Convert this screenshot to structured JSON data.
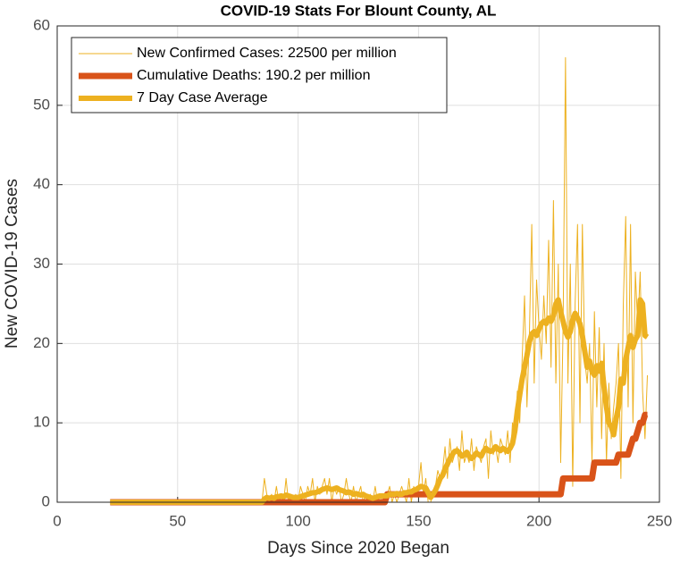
{
  "chart_data": {
    "type": "line",
    "title": "COVID-19 Stats For Blount County, AL",
    "xlabel": "Days Since 2020 Began",
    "ylabel": "New COVID-19 Cases",
    "xlim": [
      0,
      250
    ],
    "xticks": [
      0,
      50,
      100,
      150,
      200,
      250
    ],
    "ylim": [
      0,
      60
    ],
    "yticks": [
      0,
      10,
      20,
      30,
      40,
      50,
      60
    ],
    "grid": true,
    "legend": "northwest",
    "x": [
      22,
      23,
      24,
      25,
      26,
      27,
      28,
      29,
      30,
      31,
      32,
      33,
      34,
      35,
      36,
      37,
      38,
      39,
      40,
      41,
      42,
      43,
      44,
      45,
      46,
      47,
      48,
      49,
      50,
      51,
      52,
      53,
      54,
      55,
      56,
      57,
      58,
      59,
      60,
      61,
      62,
      63,
      64,
      65,
      66,
      67,
      68,
      69,
      70,
      71,
      72,
      73,
      74,
      75,
      76,
      77,
      78,
      79,
      80,
      81,
      82,
      83,
      84,
      85,
      86,
      87,
      88,
      89,
      90,
      91,
      92,
      93,
      94,
      95,
      96,
      97,
      98,
      99,
      100,
      101,
      102,
      103,
      104,
      105,
      106,
      107,
      108,
      109,
      110,
      111,
      112,
      113,
      114,
      115,
      116,
      117,
      118,
      119,
      120,
      121,
      122,
      123,
      124,
      125,
      126,
      127,
      128,
      129,
      130,
      131,
      132,
      133,
      134,
      135,
      136,
      137,
      138,
      139,
      140,
      141,
      142,
      143,
      144,
      145,
      146,
      147,
      148,
      149,
      150,
      151,
      152,
      153,
      154,
      155,
      156,
      157,
      158,
      159,
      160,
      161,
      162,
      163,
      164,
      165,
      166,
      167,
      168,
      169,
      170,
      171,
      172,
      173,
      174,
      175,
      176,
      177,
      178,
      179,
      180,
      181,
      182,
      183,
      184,
      185,
      186,
      187,
      188,
      189,
      190,
      191,
      192,
      193,
      194,
      195,
      196,
      197,
      198,
      199,
      200,
      201,
      202,
      203,
      204,
      205,
      206,
      207,
      208,
      209,
      210,
      211,
      212,
      213,
      214,
      215,
      216,
      217,
      218,
      219,
      220,
      221,
      222,
      223,
      224,
      225,
      226,
      227,
      228,
      229,
      230,
      231,
      232,
      233,
      234,
      235,
      236,
      237,
      238,
      239,
      240,
      241,
      242,
      243,
      244,
      245
    ],
    "series": [
      {
        "name": "New Confirmed Cases: 22500 per million",
        "color": "#EDB120",
        "values": [
          0,
          0,
          0,
          0,
          0,
          0,
          0,
          0,
          0,
          0,
          0,
          0,
          0,
          0,
          0,
          0,
          0,
          0,
          0,
          0,
          0,
          0,
          0,
          0,
          0,
          0,
          0,
          0,
          0,
          0,
          0,
          0,
          0,
          0,
          0,
          0,
          0,
          0,
          0,
          0,
          0,
          0,
          0,
          0,
          0,
          0,
          0,
          0,
          0,
          0,
          0,
          0,
          0,
          0,
          0,
          0,
          0,
          0,
          0,
          0,
          0,
          0,
          0,
          0,
          3,
          1,
          0,
          1,
          0,
          2,
          0,
          1,
          0,
          3,
          0,
          1,
          0,
          1,
          0,
          2,
          1,
          0,
          2,
          1,
          3,
          0,
          2,
          1,
          2,
          3,
          1,
          3,
          0,
          2,
          1,
          2,
          0,
          1,
          3,
          1,
          0,
          2,
          0,
          1,
          2,
          0,
          1,
          0,
          1,
          0,
          2,
          0,
          1,
          0,
          0,
          1,
          2,
          0,
          1,
          0,
          1,
          2,
          1,
          0,
          3,
          0,
          2,
          1,
          2,
          5,
          1,
          3,
          0,
          0,
          1,
          2,
          4,
          3,
          4,
          7,
          3,
          8,
          5,
          6,
          7,
          4,
          9,
          5,
          6,
          5,
          8,
          4,
          7,
          6,
          5,
          7,
          8,
          3,
          9,
          6,
          7,
          5,
          8,
          7,
          6,
          9,
          5,
          10,
          8,
          14,
          10,
          18,
          26,
          12,
          21,
          35,
          15,
          28,
          22,
          18,
          26,
          20,
          33,
          17,
          38,
          15,
          30,
          5,
          22,
          56,
          15,
          30,
          2,
          25,
          35,
          10,
          35,
          18,
          15,
          20,
          5,
          24,
          12,
          22,
          8,
          20,
          5,
          15,
          8,
          12,
          15,
          20,
          3,
          25,
          36,
          12,
          35,
          10,
          29,
          22,
          29,
          14,
          8,
          16
        ]
      },
      {
        "name": "Cumulative Deaths: 190.2 per million",
        "color": "#D95319",
        "values": [
          0,
          0,
          0,
          0,
          0,
          0,
          0,
          0,
          0,
          0,
          0,
          0,
          0,
          0,
          0,
          0,
          0,
          0,
          0,
          0,
          0,
          0,
          0,
          0,
          0,
          0,
          0,
          0,
          0,
          0,
          0,
          0,
          0,
          0,
          0,
          0,
          0,
          0,
          0,
          0,
          0,
          0,
          0,
          0,
          0,
          0,
          0,
          0,
          0,
          0,
          0,
          0,
          0,
          0,
          0,
          0,
          0,
          0,
          0,
          0,
          0,
          0,
          0,
          0,
          0,
          0,
          0,
          0,
          0,
          0,
          0,
          0,
          0,
          0,
          0,
          0,
          0,
          0,
          0,
          0,
          0,
          0,
          0,
          0,
          0,
          0,
          0,
          0,
          0,
          0,
          0,
          0,
          0,
          0,
          0,
          0,
          0,
          0,
          0,
          0,
          0,
          0,
          0,
          0,
          0,
          0,
          0,
          0,
          0,
          0,
          0,
          0,
          0,
          0,
          0,
          1,
          1,
          1,
          1,
          1,
          1,
          1,
          1,
          1,
          1,
          1,
          1,
          1,
          1,
          1,
          1,
          1,
          1,
          1,
          1,
          1,
          1,
          1,
          1,
          1,
          1,
          1,
          1,
          1,
          1,
          1,
          1,
          1,
          1,
          1,
          1,
          1,
          1,
          1,
          1,
          1,
          1,
          1,
          1,
          1,
          1,
          1,
          1,
          1,
          1,
          1,
          1,
          1,
          1,
          1,
          1,
          1,
          1,
          1,
          1,
          1,
          1,
          1,
          1,
          1,
          1,
          1,
          1,
          1,
          1,
          1,
          1,
          1,
          3,
          3,
          3,
          3,
          3,
          3,
          3,
          3,
          3,
          3,
          3,
          3,
          3,
          5,
          5,
          5,
          5,
          5,
          5,
          5,
          5,
          5,
          5,
          6,
          6,
          6,
          6,
          6,
          7,
          8,
          8,
          9,
          10,
          10,
          11,
          11
        ]
      },
      {
        "name": "7 Day Case Average",
        "color": "#EDB120",
        "values": [
          0,
          0,
          0,
          0,
          0,
          0,
          0,
          0,
          0,
          0,
          0,
          0,
          0,
          0,
          0,
          0,
          0,
          0,
          0,
          0,
          0,
          0,
          0,
          0,
          0,
          0,
          0,
          0,
          0,
          0,
          0,
          0,
          0,
          0,
          0,
          0,
          0,
          0,
          0,
          0,
          0,
          0,
          0,
          0,
          0,
          0,
          0,
          0,
          0,
          0,
          0,
          0,
          0,
          0,
          0,
          0,
          0,
          0,
          0,
          0,
          0,
          0,
          0,
          0,
          0.4,
          0.6,
          0.5,
          0.6,
          0.5,
          0.7,
          0.7,
          0.8,
          0.7,
          0.9,
          0.8,
          0.7,
          0.6,
          0.6,
          0.6,
          0.7,
          0.8,
          0.9,
          1.0,
          1.1,
          1.2,
          1.2,
          1.3,
          1.4,
          1.6,
          1.7,
          1.8,
          1.7,
          1.6,
          1.7,
          1.8,
          1.6,
          1.5,
          1.4,
          1.2,
          1.3,
          1.2,
          1.0,
          1.1,
          1.0,
          0.9,
          1.0,
          0.8,
          0.7,
          0.6,
          0.5,
          0.6,
          0.7,
          0.8,
          0.8,
          0.8,
          0.8,
          1.0,
          1.0,
          1.0,
          1.1,
          1.0,
          1.0,
          1.2,
          1.2,
          1.3,
          1.3,
          1.5,
          1.6,
          1.8,
          2.0,
          1.9,
          1.8,
          1.2,
          0.6,
          1.0,
          1.5,
          2.2,
          3.0,
          3.4,
          4.2,
          4.8,
          5.5,
          6.0,
          6.4,
          6.5,
          6.2,
          5.8,
          6.0,
          6.3,
          5.8,
          5.5,
          5.8,
          6.2,
          6.0,
          5.8,
          6.4,
          6.8,
          6.5,
          6.4,
          6.6,
          7.0,
          6.7,
          6.5,
          6.8,
          6.6,
          6.4,
          6.8,
          7.4,
          9.0,
          11.5,
          13.5,
          15.5,
          17,
          18.5,
          20.2,
          21.2,
          21.5,
          21.0,
          21.8,
          22.5,
          22.8,
          22.5,
          23.2,
          22.8,
          23.5,
          25.0,
          25.5,
          24.0,
          22.8,
          21.5,
          20.8,
          21.5,
          23.0,
          23.8,
          23.2,
          22.5,
          21.0,
          19.0,
          17.0,
          17.8,
          16.5,
          16.0,
          17.2,
          16.5,
          17.5,
          14.5,
          12.0,
          10.0,
          9.5,
          8.5,
          10.5,
          12.0,
          15.5,
          15.0,
          18.0,
          19.5,
          21.0,
          19.5,
          20.5,
          21.0,
          25.5,
          25.0,
          21.0,
          20.8
        ]
      }
    ]
  }
}
